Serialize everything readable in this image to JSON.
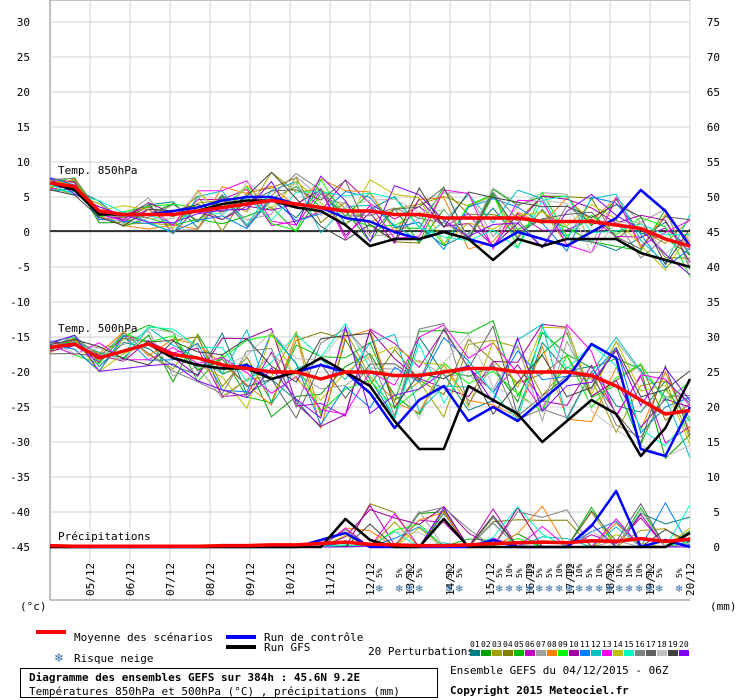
{
  "chart_data": {
    "type": "line",
    "title": "Diagramme des ensembles GEFS sur 384h : 45.6N 9.2E",
    "subtitle": "Températures 850hPa et 500hPa (°C) , précipitations (mm)",
    "left_axis_unit": "(°c)",
    "right_axis_unit": "(mm)",
    "left_ticks": [
      "30",
      "25",
      "20",
      "15",
      "10",
      "5",
      "0",
      "-5",
      "-10",
      "-15",
      "-20",
      "-25",
      "-30",
      "-35",
      "-40",
      "-45"
    ],
    "right_ticks": [
      "75",
      "70",
      "65",
      "60",
      "55",
      "50",
      "45",
      "40",
      "35",
      "30",
      "25",
      "20",
      "15",
      "10",
      "5",
      "0"
    ],
    "x_ticks": [
      "05/12",
      "06/12",
      "07/12",
      "08/12",
      "09/12",
      "10/12",
      "11/12",
      "12/12",
      "13/12",
      "14/12",
      "15/12",
      "16/12",
      "17/12",
      "18/12",
      "19/12",
      "20/12"
    ],
    "panel_labels": [
      "Temp. 850hPa",
      "Temp. 500hPa",
      "Précipitations"
    ],
    "snow_labels": [
      "5%",
      "5%",
      "5%",
      "5%",
      "5%",
      "5%",
      "5%",
      "10%",
      "5%",
      "10%",
      "5%",
      "5%",
      "10%",
      "10%",
      "10%",
      "5%",
      "10%",
      "5%",
      "10%",
      "10%",
      "10%",
      "5%",
      "5%",
      "5%"
    ],
    "series": [
      {
        "name": "Moyenne des scénarios",
        "color": "#ff0000",
        "panel": "t850",
        "values": [
          7,
          6.5,
          3,
          2.5,
          2.5,
          2.5,
          3,
          3.5,
          4,
          4.5,
          4,
          3.5,
          3,
          3,
          2.5,
          2.5,
          2,
          2,
          2,
          2,
          1.5,
          1.5,
          1.5,
          1,
          0.5,
          -1,
          -2
        ]
      },
      {
        "name": "Run de contrôle",
        "color": "#0000ff",
        "panel": "t850",
        "values": [
          7,
          6,
          3,
          2.5,
          2.5,
          3,
          3.5,
          4.5,
          5,
          5,
          4,
          3.5,
          2,
          1.5,
          0,
          -1,
          0,
          -1,
          -2,
          0,
          -1,
          -2,
          0,
          2,
          6,
          3,
          -2
        ]
      },
      {
        "name": "Run GFS",
        "color": "#000000",
        "panel": "t850",
        "values": [
          7,
          6,
          2.5,
          2.5,
          2.5,
          2.5,
          3,
          4,
          4.5,
          4.5,
          3.5,
          3,
          1,
          -2,
          -1,
          -1,
          0,
          -1,
          -4,
          -1,
          -2,
          -1,
          -1,
          -1,
          -3,
          -4,
          -5
        ]
      },
      {
        "name": "Moyenne des scénarios",
        "color": "#ff0000",
        "panel": "t500",
        "values": [
          -16.5,
          -16,
          -18,
          -17,
          -16,
          -17.5,
          -18,
          -19,
          -19.5,
          -20,
          -20,
          -21,
          -20,
          -20,
          -20.5,
          -20.5,
          -20,
          -19.5,
          -19.5,
          -20,
          -20,
          -20,
          -20.5,
          -22,
          -24,
          -26,
          -25.5
        ]
      },
      {
        "name": "Run de contrôle",
        "color": "#0000ff",
        "panel": "t500",
        "values": [
          -16.5,
          -16,
          -18,
          -17,
          -16,
          -18,
          -19,
          -19.5,
          -19,
          -21,
          -20,
          -19,
          -20,
          -23,
          -28,
          -24,
          -22,
          -27,
          -25,
          -27,
          -24,
          -21,
          -16,
          -18,
          -31,
          -32,
          -25
        ]
      },
      {
        "name": "Run GFS",
        "color": "#000000",
        "panel": "t500",
        "values": [
          -16.5,
          -16,
          -18,
          -17,
          -16,
          -18,
          -19,
          -19.5,
          -19.5,
          -21,
          -20,
          -18,
          -20,
          -22,
          -27,
          -31,
          -31,
          -22,
          -24,
          -26,
          -30,
          -27,
          -24,
          -26,
          -32,
          -28,
          -21
        ]
      },
      {
        "name": "Moyenne des scénarios",
        "color": "#ff0000",
        "panel": "precip",
        "values": [
          0.2,
          0.1,
          0.1,
          0.1,
          0.1,
          0.1,
          0.1,
          0.2,
          0.2,
          0.3,
          0.3,
          0.5,
          0.7,
          0.4,
          0.3,
          0.2,
          0.2,
          0.3,
          0.5,
          0.6,
          0.7,
          0.6,
          0.9,
          0.8,
          1.2,
          0.8,
          1.1
        ]
      },
      {
        "name": "Run de contrôle",
        "color": "#0000ff",
        "panel": "precip",
        "values": [
          0,
          0,
          0,
          0,
          0,
          0,
          0,
          0,
          0,
          0,
          0,
          1,
          2,
          0,
          0,
          0,
          0,
          0,
          1,
          0,
          0,
          0,
          3,
          8,
          0,
          1,
          0
        ]
      },
      {
        "name": "Run GFS",
        "color": "#000000",
        "panel": "precip",
        "values": [
          0,
          0,
          0,
          0,
          0,
          0,
          0,
          0,
          0,
          0,
          0,
          0,
          4,
          1,
          0,
          0,
          4,
          0,
          0,
          0,
          0,
          0,
          0,
          0,
          0,
          0,
          2
        ]
      }
    ]
  },
  "legend": {
    "mean": "Moyenne des scénarios",
    "control": "Run de contrôle",
    "gfs": "Run GFS",
    "snow": "Risque neige",
    "perturbations": "20 Perturbations",
    "perturbation_ids": [
      "01",
      "02",
      "03",
      "04",
      "05",
      "06",
      "07",
      "08",
      "09",
      "10",
      "11",
      "12",
      "13",
      "14",
      "15",
      "16",
      "17",
      "18",
      "19",
      "20"
    ],
    "perturbation_colors": [
      "#008080",
      "#00a000",
      "#a0a000",
      "#808000",
      "#00c000",
      "#c000c0",
      "#a0a0a0",
      "#ff8000",
      "#00ff00",
      "#a000a0",
      "#0080ff",
      "#00c0c0",
      "#ff00ff",
      "#c0c000",
      "#00ffc0",
      "#808080",
      "#606060",
      "#c0c0c0",
      "#404040",
      "#8000ff"
    ]
  },
  "footer": {
    "title": "Diagramme des ensembles GEFS sur 384h : 45.6N 9.2E",
    "subtitle": "Températures 850hPa et 500hPa (°C) , précipitations (mm)",
    "run_info": "Ensemble GEFS du 04/12/2015 - 06Z",
    "copyright": "Copyright 2015 Meteociel.fr"
  }
}
